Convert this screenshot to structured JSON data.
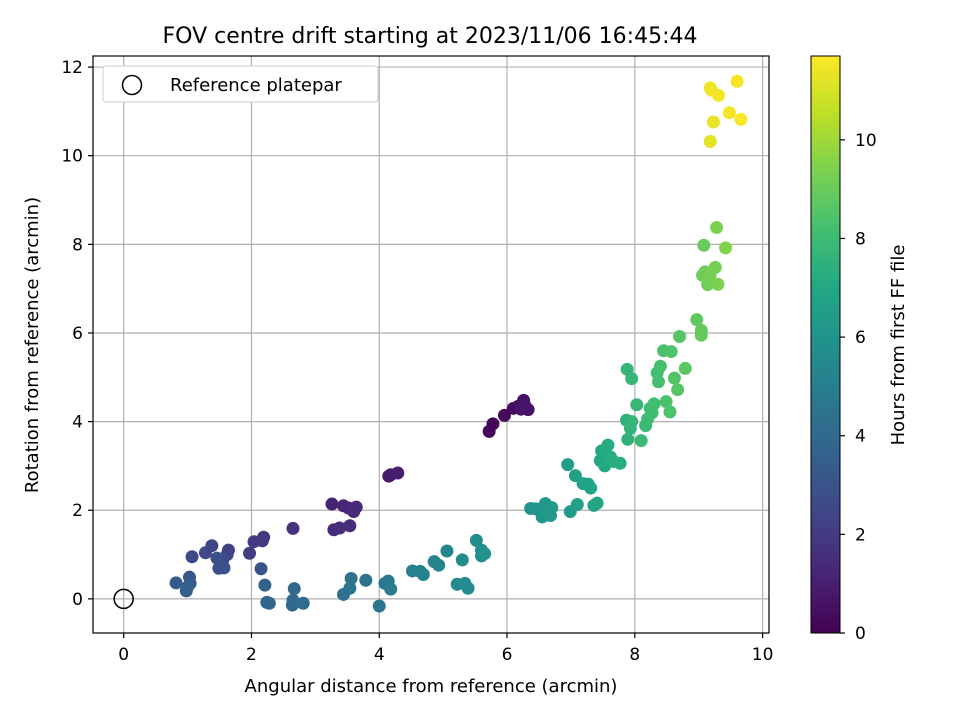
{
  "chart_data": {
    "type": "scatter",
    "title": "FOV centre drift starting at 2023/11/06 16:45:44",
    "xlabel": "Angular distance from reference (arcmin)",
    "ylabel": "Rotation from reference (arcmin)",
    "xlim": [
      -0.48,
      10.1
    ],
    "ylim": [
      -0.77,
      12.25
    ],
    "xticks": [
      0,
      2,
      4,
      6,
      8,
      10
    ],
    "yticks": [
      0,
      2,
      4,
      6,
      8,
      10,
      12
    ],
    "grid": true,
    "legend": {
      "placement": "top-left",
      "entries": [
        "Reference platepar"
      ]
    },
    "reference_point": {
      "x": 0,
      "y": 0,
      "marker": "open-circle"
    },
    "colorbar": {
      "label": "Hours from first FF file",
      "colormap": "viridis",
      "range": [
        0,
        11.7
      ],
      "ticks": [
        0,
        2,
        4,
        6,
        8,
        10
      ]
    },
    "points": [
      {
        "x": 5.72,
        "y": 3.78,
        "c": 0.1
      },
      {
        "x": 5.78,
        "y": 3.95,
        "c": 0.2
      },
      {
        "x": 5.96,
        "y": 4.14,
        "c": 0.3
      },
      {
        "x": 6.1,
        "y": 4.3,
        "c": 0.4
      },
      {
        "x": 6.18,
        "y": 4.35,
        "c": 0.5
      },
      {
        "x": 6.26,
        "y": 4.48,
        "c": 0.55
      },
      {
        "x": 6.22,
        "y": 4.28,
        "c": 0.6
      },
      {
        "x": 6.33,
        "y": 4.27,
        "c": 0.65
      },
      {
        "x": 6.28,
        "y": 4.36,
        "c": 0.7
      },
      {
        "x": 4.15,
        "y": 2.77,
        "c": 0.9
      },
      {
        "x": 4.29,
        "y": 2.84,
        "c": 1.0
      },
      {
        "x": 4.18,
        "y": 2.8,
        "c": 0.95
      },
      {
        "x": 3.26,
        "y": 2.14,
        "c": 1.1
      },
      {
        "x": 3.44,
        "y": 2.1,
        "c": 1.2
      },
      {
        "x": 3.52,
        "y": 2.05,
        "c": 1.25
      },
      {
        "x": 3.59,
        "y": 2.0,
        "c": 1.3
      },
      {
        "x": 3.64,
        "y": 2.07,
        "c": 1.35
      },
      {
        "x": 3.6,
        "y": 1.97,
        "c": 1.4
      },
      {
        "x": 3.29,
        "y": 1.56,
        "c": 1.45
      },
      {
        "x": 3.38,
        "y": 1.6,
        "c": 1.5
      },
      {
        "x": 3.54,
        "y": 1.65,
        "c": 1.55
      },
      {
        "x": 2.65,
        "y": 1.59,
        "c": 1.7
      },
      {
        "x": 2.19,
        "y": 1.39,
        "c": 1.8
      },
      {
        "x": 2.17,
        "y": 1.31,
        "c": 1.9
      },
      {
        "x": 2.04,
        "y": 1.29,
        "c": 2.0
      },
      {
        "x": 1.97,
        "y": 1.03,
        "c": 2.1
      },
      {
        "x": 1.64,
        "y": 1.1,
        "c": 2.2
      },
      {
        "x": 1.62,
        "y": 1.0,
        "c": 2.3
      },
      {
        "x": 1.38,
        "y": 1.2,
        "c": 2.4
      },
      {
        "x": 1.28,
        "y": 1.04,
        "c": 2.5
      },
      {
        "x": 1.07,
        "y": 0.95,
        "c": 2.6
      },
      {
        "x": 1.55,
        "y": 0.87,
        "c": 2.7
      },
      {
        "x": 1.49,
        "y": 0.69,
        "c": 2.8
      },
      {
        "x": 1.57,
        "y": 0.7,
        "c": 2.85
      },
      {
        "x": 1.46,
        "y": 0.92,
        "c": 2.9
      },
      {
        "x": 2.15,
        "y": 0.68,
        "c": 3.0
      },
      {
        "x": 1.03,
        "y": 0.49,
        "c": 3.1
      },
      {
        "x": 1.04,
        "y": 0.35,
        "c": 3.2
      },
      {
        "x": 0.82,
        "y": 0.36,
        "c": 3.3
      },
      {
        "x": 0.98,
        "y": 0.18,
        "c": 3.4
      },
      {
        "x": 1.0,
        "y": 0.27,
        "c": 3.5
      },
      {
        "x": 2.21,
        "y": 0.31,
        "c": 3.7
      },
      {
        "x": 2.24,
        "y": -0.08,
        "c": 3.8
      },
      {
        "x": 2.28,
        "y": -0.1,
        "c": 3.85
      },
      {
        "x": 2.64,
        "y": -0.14,
        "c": 3.9
      },
      {
        "x": 2.67,
        "y": 0.23,
        "c": 4.0
      },
      {
        "x": 2.65,
        "y": -0.03,
        "c": 4.05
      },
      {
        "x": 2.81,
        "y": -0.1,
        "c": 4.1
      },
      {
        "x": 3.44,
        "y": 0.1,
        "c": 4.3
      },
      {
        "x": 3.56,
        "y": 0.46,
        "c": 4.4
      },
      {
        "x": 3.54,
        "y": 0.24,
        "c": 4.45
      },
      {
        "x": 3.79,
        "y": 0.42,
        "c": 4.5
      },
      {
        "x": 4.0,
        "y": -0.16,
        "c": 4.6
      },
      {
        "x": 4.09,
        "y": 0.35,
        "c": 4.7
      },
      {
        "x": 4.14,
        "y": 0.4,
        "c": 4.75
      },
      {
        "x": 4.18,
        "y": 0.22,
        "c": 4.8
      },
      {
        "x": 4.52,
        "y": 0.63,
        "c": 5.0
      },
      {
        "x": 4.64,
        "y": 0.62,
        "c": 5.1
      },
      {
        "x": 4.69,
        "y": 0.55,
        "c": 5.15
      },
      {
        "x": 4.86,
        "y": 0.84,
        "c": 5.2
      },
      {
        "x": 4.93,
        "y": 0.76,
        "c": 5.3
      },
      {
        "x": 5.06,
        "y": 1.08,
        "c": 5.4
      },
      {
        "x": 5.22,
        "y": 0.33,
        "c": 5.5
      },
      {
        "x": 5.34,
        "y": 0.35,
        "c": 5.55
      },
      {
        "x": 5.39,
        "y": 0.24,
        "c": 5.6
      },
      {
        "x": 5.3,
        "y": 0.88,
        "c": 5.65
      },
      {
        "x": 5.52,
        "y": 1.32,
        "c": 5.7
      },
      {
        "x": 5.6,
        "y": 1.1,
        "c": 5.8
      },
      {
        "x": 5.6,
        "y": 0.97,
        "c": 5.85
      },
      {
        "x": 5.65,
        "y": 1.02,
        "c": 5.9
      },
      {
        "x": 6.37,
        "y": 2.04,
        "c": 6.0
      },
      {
        "x": 6.45,
        "y": 2.03,
        "c": 6.05
      },
      {
        "x": 6.55,
        "y": 1.85,
        "c": 6.1
      },
      {
        "x": 6.6,
        "y": 2.15,
        "c": 6.15
      },
      {
        "x": 6.68,
        "y": 1.88,
        "c": 6.2
      },
      {
        "x": 6.61,
        "y": 1.97,
        "c": 6.25
      },
      {
        "x": 6.7,
        "y": 2.06,
        "c": 6.3
      },
      {
        "x": 6.99,
        "y": 1.97,
        "c": 6.4
      },
      {
        "x": 6.95,
        "y": 3.03,
        "c": 6.5
      },
      {
        "x": 7.07,
        "y": 2.78,
        "c": 6.6
      },
      {
        "x": 7.1,
        "y": 2.13,
        "c": 6.65
      },
      {
        "x": 7.19,
        "y": 2.6,
        "c": 6.7
      },
      {
        "x": 7.27,
        "y": 2.59,
        "c": 6.75
      },
      {
        "x": 7.31,
        "y": 2.5,
        "c": 6.8
      },
      {
        "x": 7.36,
        "y": 2.11,
        "c": 6.85
      },
      {
        "x": 7.41,
        "y": 2.16,
        "c": 6.9
      },
      {
        "x": 7.46,
        "y": 3.12,
        "c": 7.0
      },
      {
        "x": 7.48,
        "y": 3.34,
        "c": 7.05
      },
      {
        "x": 7.53,
        "y": 3.0,
        "c": 7.1
      },
      {
        "x": 7.58,
        "y": 3.47,
        "c": 7.15
      },
      {
        "x": 7.62,
        "y": 3.2,
        "c": 7.2
      },
      {
        "x": 7.67,
        "y": 3.1,
        "c": 7.25
      },
      {
        "x": 7.77,
        "y": 3.06,
        "c": 7.3
      },
      {
        "x": 7.87,
        "y": 4.03,
        "c": 7.5
      },
      {
        "x": 7.89,
        "y": 3.6,
        "c": 7.55
      },
      {
        "x": 7.93,
        "y": 3.85,
        "c": 7.6
      },
      {
        "x": 7.95,
        "y": 4.0,
        "c": 7.65
      },
      {
        "x": 7.88,
        "y": 5.18,
        "c": 7.7
      },
      {
        "x": 7.95,
        "y": 4.97,
        "c": 7.75
      },
      {
        "x": 8.03,
        "y": 4.38,
        "c": 7.8
      },
      {
        "x": 8.1,
        "y": 3.57,
        "c": 7.85
      },
      {
        "x": 8.17,
        "y": 3.91,
        "c": 7.9
      },
      {
        "x": 8.2,
        "y": 4.06,
        "c": 7.95
      },
      {
        "x": 8.24,
        "y": 4.3,
        "c": 8.0
      },
      {
        "x": 8.27,
        "y": 4.2,
        "c": 8.05
      },
      {
        "x": 8.3,
        "y": 4.4,
        "c": 8.1
      },
      {
        "x": 8.35,
        "y": 5.1,
        "c": 8.15
      },
      {
        "x": 8.37,
        "y": 4.9,
        "c": 8.2
      },
      {
        "x": 8.4,
        "y": 5.25,
        "c": 8.25
      },
      {
        "x": 8.45,
        "y": 5.6,
        "c": 8.3
      },
      {
        "x": 8.49,
        "y": 4.45,
        "c": 8.35
      },
      {
        "x": 8.55,
        "y": 4.22,
        "c": 8.4
      },
      {
        "x": 8.57,
        "y": 5.58,
        "c": 8.45
      },
      {
        "x": 8.62,
        "y": 4.98,
        "c": 8.5
      },
      {
        "x": 8.67,
        "y": 4.72,
        "c": 8.55
      },
      {
        "x": 8.7,
        "y": 5.92,
        "c": 8.6
      },
      {
        "x": 8.79,
        "y": 5.2,
        "c": 8.7
      },
      {
        "x": 8.97,
        "y": 6.3,
        "c": 8.8
      },
      {
        "x": 9.04,
        "y": 6.06,
        "c": 8.9
      },
      {
        "x": 9.04,
        "y": 5.95,
        "c": 8.95
      },
      {
        "x": 9.08,
        "y": 7.98,
        "c": 9.0
      },
      {
        "x": 9.06,
        "y": 7.3,
        "c": 9.1
      },
      {
        "x": 9.1,
        "y": 7.38,
        "c": 9.15
      },
      {
        "x": 9.14,
        "y": 7.09,
        "c": 9.2
      },
      {
        "x": 9.18,
        "y": 7.32,
        "c": 9.25
      },
      {
        "x": 9.26,
        "y": 7.48,
        "c": 9.3
      },
      {
        "x": 9.28,
        "y": 8.38,
        "c": 9.35
      },
      {
        "x": 9.3,
        "y": 7.1,
        "c": 9.4
      },
      {
        "x": 9.42,
        "y": 7.92,
        "c": 9.5
      },
      {
        "x": 9.18,
        "y": 10.32,
        "c": 11.2
      },
      {
        "x": 9.23,
        "y": 10.76,
        "c": 11.3
      },
      {
        "x": 9.2,
        "y": 11.48,
        "c": 11.4
      },
      {
        "x": 9.18,
        "y": 11.53,
        "c": 11.45
      },
      {
        "x": 9.31,
        "y": 11.36,
        "c": 11.5
      },
      {
        "x": 9.48,
        "y": 10.97,
        "c": 11.55
      },
      {
        "x": 9.6,
        "y": 11.68,
        "c": 11.6
      },
      {
        "x": 9.66,
        "y": 10.82,
        "c": 11.65
      }
    ]
  }
}
